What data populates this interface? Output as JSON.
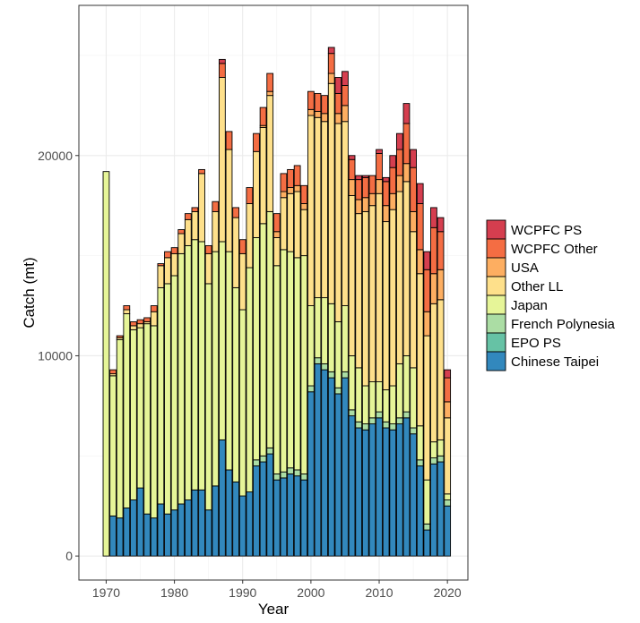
{
  "chart_data": {
    "type": "bar",
    "stacked": true,
    "title": "",
    "xlabel": "Year",
    "ylabel": "Catch (mt)",
    "xlim": [
      1966,
      2023
    ],
    "ylim": [
      -1200,
      27500
    ],
    "x_ticks": [
      1970,
      1980,
      1990,
      2000,
      2010,
      2020
    ],
    "y_ticks": [
      0,
      10000,
      20000
    ],
    "grid": true,
    "legend_position": "right",
    "years": [
      1970,
      1971,
      1972,
      1973,
      1974,
      1975,
      1976,
      1977,
      1978,
      1979,
      1980,
      1981,
      1982,
      1983,
      1984,
      1985,
      1986,
      1987,
      1988,
      1989,
      1990,
      1991,
      1992,
      1993,
      1994,
      1995,
      1996,
      1997,
      1998,
      1999,
      2000,
      2001,
      2002,
      2003,
      2004,
      2005,
      2006,
      2007,
      2008,
      2009,
      2010,
      2011,
      2012,
      2013,
      2014,
      2015,
      2016,
      2017,
      2018,
      2019,
      2020
    ],
    "series": [
      {
        "name": "Chinese Taipei",
        "color": "#3288BD",
        "values": [
          0,
          2000,
          1900,
          2400,
          2800,
          3400,
          2100,
          1900,
          2600,
          2100,
          2300,
          2600,
          2800,
          3300,
          3300,
          2300,
          3500,
          5800,
          4300,
          3700,
          3000,
          3200,
          4500,
          4700,
          5100,
          3800,
          3900,
          4100,
          4000,
          3800,
          8200,
          9600,
          9300,
          8900,
          8100,
          8900,
          7000,
          6400,
          6300,
          6600,
          6900,
          6400,
          6300,
          6600,
          6900,
          6100,
          4500,
          1300,
          4600,
          4700,
          2500
        ]
      },
      {
        "name": "EPO PS",
        "color": "#66C2A5",
        "values": [
          0,
          0,
          0,
          0,
          0,
          0,
          0,
          0,
          0,
          0,
          0,
          0,
          0,
          0,
          0,
          0,
          0,
          0,
          0,
          0,
          0,
          0,
          0,
          0,
          0,
          0,
          0,
          0,
          0,
          0,
          0,
          0,
          0,
          0,
          0,
          0,
          0,
          0,
          0,
          0,
          0,
          0,
          0,
          0,
          0,
          0,
          0,
          0,
          0,
          0,
          0
        ]
      },
      {
        "name": "French Polynesia",
        "color": "#ABDDA4",
        "values": [
          0,
          0,
          0,
          0,
          0,
          0,
          0,
          0,
          0,
          0,
          0,
          0,
          0,
          0,
          0,
          0,
          0,
          0,
          0,
          0,
          0,
          0,
          300,
          300,
          300,
          300,
          300,
          300,
          300,
          300,
          300,
          300,
          300,
          300,
          300,
          300,
          300,
          300,
          300,
          300,
          300,
          300,
          300,
          300,
          300,
          300,
          300,
          300,
          300,
          300,
          300
        ]
      },
      {
        "name": "Japan",
        "color": "#E6F598",
        "values": [
          19200,
          7000,
          8900,
          9700,
          8500,
          8000,
          9500,
          9600,
          10800,
          11500,
          11700,
          12500,
          12700,
          12500,
          12400,
          11300,
          11700,
          9900,
          10900,
          9700,
          9300,
          11200,
          11100,
          11600,
          11800,
          10400,
          11100,
          10800,
          10600,
          10900,
          4000,
          3000,
          3300,
          3400,
          3300,
          3300,
          2700,
          2700,
          1900,
          1800,
          1500,
          1600,
          1900,
          2700,
          2800,
          3000,
          1700,
          2200,
          800,
          800,
          300
        ]
      },
      {
        "name": "Other LL",
        "color": "#FEE08B",
        "values": [
          0,
          100,
          100,
          200,
          200,
          200,
          100,
          700,
          1100,
          1300,
          1100,
          1000,
          1300,
          1400,
          3400,
          1500,
          2000,
          8200,
          5100,
          3500,
          2800,
          3200,
          4300,
          4800,
          5800,
          1400,
          2600,
          2900,
          3300,
          2300,
          9500,
          9000,
          8800,
          11000,
          9900,
          9200,
          8000,
          7700,
          8700,
          8800,
          9400,
          8400,
          8800,
          8600,
          8700,
          6800,
          7600,
          7200,
          6900,
          7000,
          3800
        ]
      },
      {
        "name": "USA",
        "color": "#FDAE61",
        "values": [
          0,
          0,
          0,
          0,
          0,
          0,
          0,
          0,
          0,
          0,
          0,
          0,
          0,
          0,
          0,
          0,
          0,
          0,
          0,
          0,
          0,
          0,
          0,
          100,
          200,
          300,
          300,
          300,
          300,
          300,
          300,
          300,
          400,
          500,
          500,
          800,
          800,
          700,
          700,
          600,
          700,
          800,
          800,
          800,
          900,
          1000,
          1200,
          1200,
          1500,
          1500,
          800
        ]
      },
      {
        "name": "WCPFC Other",
        "color": "#F46D43",
        "values": [
          0,
          200,
          100,
          200,
          200,
          200,
          200,
          300,
          100,
          300,
          300,
          200,
          300,
          200,
          200,
          400,
          500,
          700,
          900,
          500,
          700,
          800,
          900,
          900,
          900,
          900,
          900,
          900,
          1000,
          900,
          900,
          900,
          900,
          1000,
          1000,
          1000,
          1000,
          1000,
          1000,
          900,
          1300,
          1200,
          1300,
          1300,
          2000,
          2200,
          2300,
          2100,
          2300,
          1900,
          1200
        ]
      },
      {
        "name": "WCPFC PS",
        "color": "#D53E4F",
        "values": [
          0,
          0,
          0,
          0,
          0,
          0,
          0,
          0,
          0,
          0,
          0,
          0,
          0,
          0,
          0,
          0,
          0,
          200,
          0,
          0,
          0,
          0,
          0,
          0,
          0,
          0,
          0,
          0,
          0,
          0,
          0,
          0,
          0,
          300,
          800,
          700,
          200,
          200,
          100,
          0,
          200,
          200,
          600,
          800,
          1000,
          900,
          1000,
          900,
          1000,
          700,
          400
        ]
      }
    ]
  }
}
